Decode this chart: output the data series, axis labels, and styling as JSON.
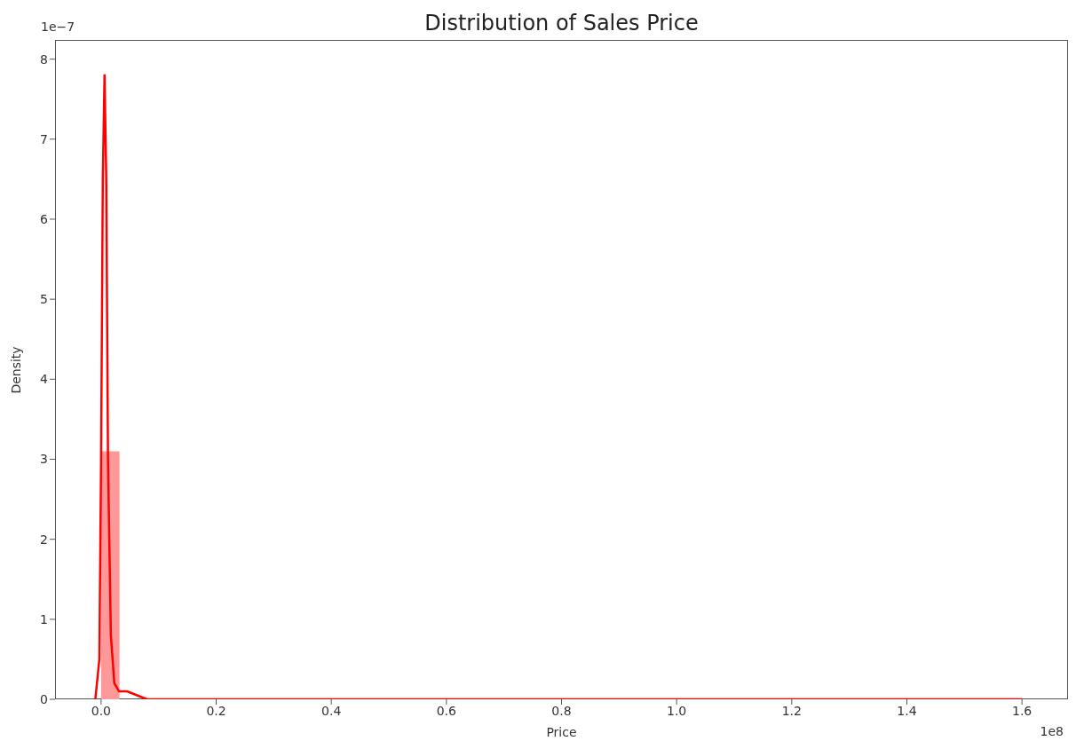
{
  "chart_data": {
    "type": "histogram",
    "title": "Distribution of Sales Price",
    "xlabel": "Price",
    "ylabel": "Density",
    "annotations": [
      "1e−7",
      "1e8"
    ],
    "series": [
      {
        "color": "#ff9999",
        "bins": [
          0,
          0.032,
          0.064,
          0.096,
          0.128,
          0.16,
          0.192,
          0.224,
          0.256,
          0.288,
          0.32,
          0.352,
          0.384,
          0.416,
          0.448,
          0.48,
          0.512,
          0.544,
          0.576,
          0.608,
          0.64,
          0.672,
          0.704,
          0.736,
          0.768,
          0.8,
          0.832,
          0.864,
          0.896,
          0.928,
          0.96,
          0.992,
          1.024,
          1.056,
          1.088,
          1.12,
          1.152,
          1.184,
          1.216,
          1.248,
          1.28,
          1.312,
          1.344,
          1.376,
          1.408,
          1.44,
          1.472,
          1.504,
          1.536,
          1.568,
          1.6
        ],
        "values": [
          3.1,
          0,
          0,
          0,
          0,
          0,
          0,
          0,
          0,
          0,
          0,
          0,
          0,
          0,
          0,
          0,
          0,
          0,
          0,
          0,
          0,
          0,
          0,
          0,
          0,
          0,
          0,
          0,
          0,
          0,
          0,
          0,
          0,
          0,
          0,
          0,
          0,
          0,
          0,
          0,
          0,
          0,
          0,
          0,
          0,
          0,
          0,
          0,
          0,
          0
        ]
      },
      {
        "type": "line",
        "color": "#ff0000",
        "x": [
          -0.01,
          -0.003,
          0,
          0.003,
          0.006,
          0.009,
          0.012,
          0.017,
          0.023,
          0.031,
          0.045,
          0.08,
          0.15,
          0.3,
          0.6,
          1.0,
          1.6
        ],
        "values": [
          0,
          0.5,
          3,
          6.5,
          7.8,
          6.5,
          3,
          0.8,
          0.2,
          0.1,
          0.1,
          0,
          0,
          0,
          0,
          0,
          0
        ]
      }
    ],
    "xlim": [
      -0.08,
      1.68
    ],
    "ylim": [
      0,
      8.24
    ],
    "xticks": [
      {
        "value": 0,
        "label": "0.0"
      },
      0.2,
      0.4,
      0.6,
      0.8,
      {
        "value": 1,
        "label": "1.0"
      },
      1.2,
      1.4,
      1.6
    ],
    "yticks": [
      0,
      1,
      2,
      3,
      4,
      5,
      6,
      7,
      8
    ],
    "grid": false
  }
}
